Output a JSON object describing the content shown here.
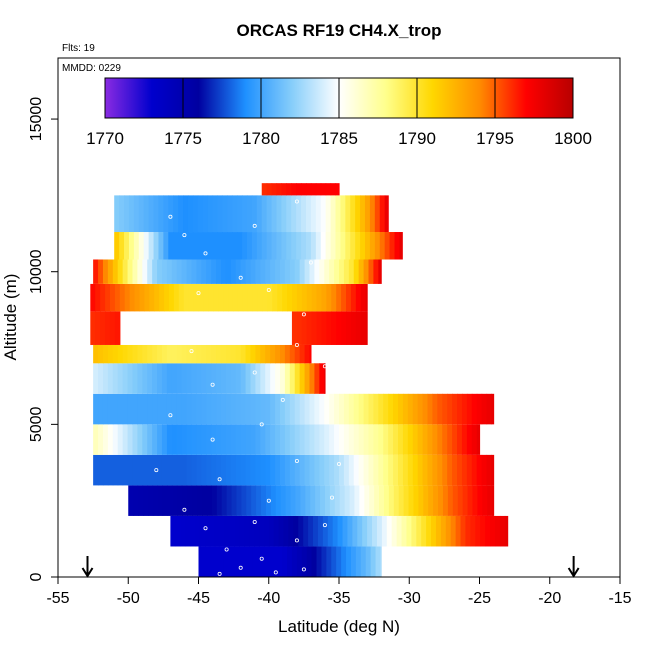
{
  "chart_data": {
    "type": "heatmap",
    "title": "ORCAS RF19 CH4.X_trop",
    "xlabel": "Latitude (deg N)",
    "ylabel": "Altitude (m)",
    "xlim": [
      -55,
      -15
    ],
    "ylim": [
      0,
      17000
    ],
    "x_ticks": [
      -55,
      -50,
      -45,
      -40,
      -35,
      -30,
      -25,
      -20,
      -15
    ],
    "x_tick_labels": [
      "-55",
      "-50",
      "-45",
      "-40",
      "-35",
      "-30",
      "-25",
      "-20",
      "-15"
    ],
    "y_ticks": [
      0,
      5000,
      10000,
      15000
    ],
    "y_tick_labels": [
      "0",
      "5000",
      "10000",
      "15000"
    ],
    "annotations": {
      "flights": "Flts: 19",
      "mmdd": "MMDD: 0229"
    },
    "flight_endpoints_lat": [
      -52.9,
      -18.3
    ],
    "colorbar": {
      "min": 1770,
      "max": 1800,
      "ticks": [
        1770,
        1775,
        1780,
        1785,
        1790,
        1795,
        1800
      ],
      "tick_labels": [
        "1770",
        "1775",
        "1780",
        "1785",
        "1790",
        "1795",
        "1800"
      ],
      "stops": [
        "#8a2be2",
        "#0000cd",
        "#0000a0",
        "#1e90ff",
        "#87cefa",
        "#ffffff",
        "#ffff8c",
        "#ffd700",
        "#ff8c00",
        "#ff0000",
        "#b80000"
      ]
    },
    "bands": [
      {
        "alt_min": 0,
        "alt_max": 1000,
        "lat_start": -45.0,
        "lat_end": -32.0,
        "profile": [
          [
            -45.0,
            1773
          ],
          [
            -39.0,
            1773
          ],
          [
            -36.0,
            1777
          ],
          [
            -33.0,
            1781
          ],
          [
            -32.0,
            1783
          ]
        ]
      },
      {
        "alt_min": 1000,
        "alt_max": 2000,
        "lat_start": -47.0,
        "lat_end": -23.0,
        "profile": [
          [
            -47.0,
            1773
          ],
          [
            -40.0,
            1774
          ],
          [
            -35.0,
            1779
          ],
          [
            -32.0,
            1784
          ],
          [
            -29.0,
            1790
          ],
          [
            -26.0,
            1796
          ],
          [
            -23.0,
            1798
          ]
        ]
      },
      {
        "alt_min": 2000,
        "alt_max": 3000,
        "lat_start": -50.0,
        "lat_end": -24.0,
        "profile": [
          [
            -50.0,
            1775
          ],
          [
            -44.0,
            1776
          ],
          [
            -38.0,
            1780
          ],
          [
            -34.0,
            1784
          ],
          [
            -31.0,
            1789
          ],
          [
            -27.0,
            1795
          ],
          [
            -24.0,
            1798
          ]
        ]
      },
      {
        "alt_min": 3000,
        "alt_max": 4000,
        "lat_start": -52.5,
        "lat_end": -24.0,
        "profile": [
          [
            -52.5,
            1778
          ],
          [
            -46.0,
            1778
          ],
          [
            -40.0,
            1779
          ],
          [
            -35.0,
            1783
          ],
          [
            -31.0,
            1789
          ],
          [
            -27.0,
            1795
          ],
          [
            -24.0,
            1798
          ]
        ]
      },
      {
        "alt_min": 4000,
        "alt_max": 5000,
        "lat_start": -52.5,
        "lat_end": -25.0,
        "profile": [
          [
            -52.5,
            1787
          ],
          [
            -47.0,
            1779
          ],
          [
            -41.0,
            1780
          ],
          [
            -36.0,
            1784
          ],
          [
            -32.0,
            1788
          ],
          [
            -28.0,
            1794
          ],
          [
            -25.0,
            1798
          ]
        ]
      },
      {
        "alt_min": 5000,
        "alt_max": 6000,
        "lat_start": -52.5,
        "lat_end": -24.0,
        "profile": [
          [
            -52.5,
            1780
          ],
          [
            -46.0,
            1780
          ],
          [
            -40.0,
            1781
          ],
          [
            -36.0,
            1785
          ],
          [
            -32.0,
            1790
          ],
          [
            -28.0,
            1795
          ],
          [
            -24.0,
            1798
          ]
        ]
      },
      {
        "alt_min": 6000,
        "alt_max": 7000,
        "lat_start": -52.5,
        "lat_end": -36.0,
        "profile": [
          [
            -52.5,
            1784
          ],
          [
            -47.0,
            1780
          ],
          [
            -42.0,
            1781
          ],
          [
            -39.0,
            1786
          ],
          [
            -37.0,
            1794
          ],
          [
            -36.0,
            1798
          ]
        ]
      },
      {
        "alt_min": 7000,
        "alt_max": 7600,
        "lat_start": -52.5,
        "lat_end": -37.0,
        "profile": [
          [
            -52.5,
            1792
          ],
          [
            -47.0,
            1789
          ],
          [
            -42.0,
            1790
          ],
          [
            -39.0,
            1794
          ],
          [
            -37.0,
            1797
          ]
        ]
      },
      {
        "alt_min": 7600,
        "alt_max": 8700,
        "lat_start": -52.7,
        "lat_end": -33.0,
        "profile": [
          [
            -52.7,
            1796
          ],
          [
            -49.0,
            1797
          ],
          [
            -38.0,
            1796
          ],
          [
            -35.0,
            1797
          ],
          [
            -33.0,
            1798
          ]
        ],
        "gap": [
          -50.5,
          -38.5
        ]
      },
      {
        "alt_min": 8700,
        "alt_max": 9600,
        "lat_start": -52.7,
        "lat_end": -33.0,
        "profile": [
          [
            -52.7,
            1797
          ],
          [
            -46.0,
            1790
          ],
          [
            -40.0,
            1790
          ],
          [
            -36.0,
            1793
          ],
          [
            -33.0,
            1798
          ]
        ]
      },
      {
        "alt_min": 9600,
        "alt_max": 10400,
        "lat_start": -52.5,
        "lat_end": -32.0,
        "profile": [
          [
            -52.5,
            1797
          ],
          [
            -48.0,
            1782
          ],
          [
            -43.0,
            1779
          ],
          [
            -38.0,
            1782
          ],
          [
            -34.0,
            1790
          ],
          [
            -32.0,
            1798
          ]
        ]
      },
      {
        "alt_min": 10400,
        "alt_max": 11300,
        "lat_start": -51.0,
        "lat_end": -30.5,
        "profile": [
          [
            -51.0,
            1792
          ],
          [
            -47.0,
            1779
          ],
          [
            -42.0,
            1779
          ],
          [
            -37.0,
            1783
          ],
          [
            -33.0,
            1792
          ],
          [
            -30.5,
            1798
          ]
        ]
      },
      {
        "alt_min": 11300,
        "alt_max": 12500,
        "lat_start": -51.0,
        "lat_end": -31.5,
        "profile": [
          [
            -51.0,
            1782
          ],
          [
            -46.0,
            1779
          ],
          [
            -41.0,
            1780
          ],
          [
            -36.0,
            1785
          ],
          [
            -33.0,
            1793
          ],
          [
            -31.5,
            1798
          ]
        ]
      },
      {
        "alt_min": 12500,
        "alt_max": 12900,
        "lat_start": -40.5,
        "lat_end": -35.0,
        "profile": [
          [
            -40.5,
            1796
          ],
          [
            -38.0,
            1797
          ],
          [
            -35.0,
            1797
          ]
        ]
      }
    ],
    "sample_points": [
      [
        -43.5,
        100
      ],
      [
        -42.0,
        300
      ],
      [
        -39.5,
        150
      ],
      [
        -37.5,
        250
      ],
      [
        -40.5,
        600
      ],
      [
        -43.0,
        900
      ],
      [
        -38.0,
        1200
      ],
      [
        -41.0,
        1800
      ],
      [
        -44.5,
        1600
      ],
      [
        -36.0,
        1700
      ],
      [
        -40.0,
        2500
      ],
      [
        -46.0,
        2200
      ],
      [
        -35.5,
        2600
      ],
      [
        -43.5,
        3200
      ],
      [
        -38.0,
        3800
      ],
      [
        -48.0,
        3500
      ],
      [
        -35.0,
        3700
      ],
      [
        -44.0,
        4500
      ],
      [
        -40.5,
        5000
      ],
      [
        -47.0,
        5300
      ],
      [
        -39.0,
        5800
      ],
      [
        -44.0,
        6300
      ],
      [
        -41.0,
        6700
      ],
      [
        -36.0,
        6900
      ],
      [
        -45.5,
        7400
      ],
      [
        -38.0,
        7600
      ],
      [
        -45.0,
        9300
      ],
      [
        -40.0,
        9400
      ],
      [
        -37.5,
        8600
      ],
      [
        -42.0,
        9800
      ],
      [
        -44.5,
        10600
      ],
      [
        -37.0,
        10300
      ],
      [
        -46.0,
        11200
      ],
      [
        -41.0,
        11500
      ],
      [
        -47.0,
        11800
      ],
      [
        -38.0,
        12300
      ]
    ]
  }
}
